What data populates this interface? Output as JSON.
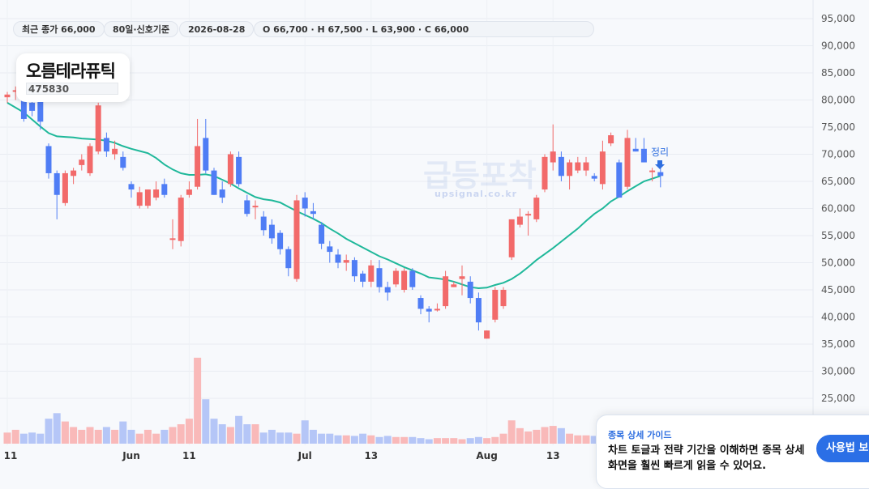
{
  "header": {
    "recent_close_label": "최근 종가 66,000",
    "lookback_label": "80일·신호기준",
    "date_label": "2026-08-28",
    "ohlc_label": "O 66,700 · H 67,500 · L 63,900 · C 66,000"
  },
  "stock": {
    "name": "오름테라퓨틱",
    "code": "475830"
  },
  "watermark": {
    "brand": "급등포착",
    "url": "upsignal.co.kr"
  },
  "guide": {
    "title": "종목 상세 가이드",
    "body": "차트 토글과 전략 기간을 이해하면 종목 상세\n화면을 훨씬 빠르게 읽을 수 있어요.",
    "button_label": "사용법 보기"
  },
  "colors": {
    "up": "#f26a6a",
    "down": "#4f7df5",
    "ma": "#1fb89a",
    "vol_up": "#f9b9b9",
    "vol_down": "#b5c6f7",
    "marker": "#2f6fe0"
  },
  "chart_data": {
    "type": "candlestick",
    "ylim": [
      22000,
      96000
    ],
    "y_ticks": [
      "95,000",
      "90,000",
      "85,000",
      "80,000",
      "75,000",
      "70,000",
      "65,000",
      "60,000",
      "55,000",
      "50,000",
      "45,000",
      "40,000",
      "35,000",
      "30,000",
      "25,000"
    ],
    "y_tick_values": [
      95000,
      90000,
      85000,
      80000,
      75000,
      70000,
      65000,
      60000,
      55000,
      50000,
      45000,
      40000,
      35000,
      30000,
      25000
    ],
    "x_ticks": [
      {
        "label": "11",
        "index": 0
      },
      {
        "label": "Jun",
        "index": 15
      },
      {
        "label": "11",
        "index": 22
      },
      {
        "label": "Jul",
        "index": 36
      },
      {
        "label": "13",
        "index": 44
      },
      {
        "label": "Aug",
        "index": 58
      },
      {
        "label": "13",
        "index": 66
      }
    ],
    "candles": [
      {
        "o": 80500,
        "h": 81500,
        "l": 79500,
        "c": 81000
      },
      {
        "o": 81500,
        "h": 82500,
        "l": 80000,
        "c": 81800
      },
      {
        "o": 80500,
        "h": 81000,
        "l": 76000,
        "c": 76500
      },
      {
        "o": 79500,
        "h": 80500,
        "l": 77000,
        "c": 78000
      },
      {
        "o": 80000,
        "h": 81000,
        "l": 74500,
        "c": 76000
      },
      {
        "o": 71500,
        "h": 72000,
        "l": 65500,
        "c": 66500
      },
      {
        "o": 66500,
        "h": 67000,
        "l": 58000,
        "c": 62500
      },
      {
        "o": 61000,
        "h": 67000,
        "l": 60500,
        "c": 66500
      },
      {
        "o": 66000,
        "h": 67500,
        "l": 64500,
        "c": 67000
      },
      {
        "o": 68000,
        "h": 70000,
        "l": 67000,
        "c": 69000
      },
      {
        "o": 66500,
        "h": 72000,
        "l": 66000,
        "c": 71500
      },
      {
        "o": 70500,
        "h": 79500,
        "l": 70000,
        "c": 79000
      },
      {
        "o": 73000,
        "h": 74000,
        "l": 69500,
        "c": 70500
      },
      {
        "o": 70000,
        "h": 72500,
        "l": 69000,
        "c": 71000
      },
      {
        "o": 69500,
        "h": 70500,
        "l": 67000,
        "c": 67500
      },
      {
        "o": 64500,
        "h": 65000,
        "l": 62000,
        "c": 63500
      },
      {
        "o": 60500,
        "h": 64000,
        "l": 60000,
        "c": 63000
      },
      {
        "o": 60500,
        "h": 63500,
        "l": 60000,
        "c": 63500
      },
      {
        "o": 62000,
        "h": 65000,
        "l": 61500,
        "c": 63500
      },
      {
        "o": 64500,
        "h": 65500,
        "l": 62000,
        "c": 62500
      },
      {
        "o": 54500,
        "h": 58000,
        "l": 52500,
        "c": 54500
      },
      {
        "o": 54000,
        "h": 62500,
        "l": 53000,
        "c": 62000
      },
      {
        "o": 62500,
        "h": 65000,
        "l": 62000,
        "c": 63500
      },
      {
        "o": 64000,
        "h": 76500,
        "l": 63500,
        "c": 71500
      },
      {
        "o": 73000,
        "h": 76500,
        "l": 66500,
        "c": 67000
      },
      {
        "o": 67000,
        "h": 67500,
        "l": 62500,
        "c": 62500
      },
      {
        "o": 63500,
        "h": 65000,
        "l": 61000,
        "c": 62000
      },
      {
        "o": 64500,
        "h": 70500,
        "l": 64000,
        "c": 70000
      },
      {
        "o": 69500,
        "h": 70500,
        "l": 64000,
        "c": 64500
      },
      {
        "o": 61500,
        "h": 62500,
        "l": 58500,
        "c": 59000
      },
      {
        "o": 60500,
        "h": 61500,
        "l": 58000,
        "c": 60500
      },
      {
        "o": 58500,
        "h": 59500,
        "l": 55000,
        "c": 56000
      },
      {
        "o": 57000,
        "h": 58000,
        "l": 53500,
        "c": 54500
      },
      {
        "o": 55500,
        "h": 56000,
        "l": 51500,
        "c": 52500
      },
      {
        "o": 52500,
        "h": 53000,
        "l": 47500,
        "c": 49000
      },
      {
        "o": 47000,
        "h": 62500,
        "l": 46500,
        "c": 61500
      },
      {
        "o": 62000,
        "h": 63000,
        "l": 58500,
        "c": 60000
      },
      {
        "o": 59500,
        "h": 61000,
        "l": 58000,
        "c": 59000
      },
      {
        "o": 57000,
        "h": 57500,
        "l": 52500,
        "c": 53500
      },
      {
        "o": 53000,
        "h": 54000,
        "l": 50000,
        "c": 52000
      },
      {
        "o": 51500,
        "h": 52500,
        "l": 49000,
        "c": 50000
      },
      {
        "o": 50000,
        "h": 51500,
        "l": 48500,
        "c": 50500
      },
      {
        "o": 50500,
        "h": 51000,
        "l": 46500,
        "c": 47500
      },
      {
        "o": 48000,
        "h": 48500,
        "l": 45500,
        "c": 46500
      },
      {
        "o": 46500,
        "h": 50500,
        "l": 45500,
        "c": 49500
      },
      {
        "o": 49000,
        "h": 50500,
        "l": 44500,
        "c": 45500
      },
      {
        "o": 45500,
        "h": 46500,
        "l": 43000,
        "c": 44500
      },
      {
        "o": 46000,
        "h": 49000,
        "l": 45500,
        "c": 48500
      },
      {
        "o": 45000,
        "h": 49000,
        "l": 44500,
        "c": 48500
      },
      {
        "o": 48500,
        "h": 49000,
        "l": 45000,
        "c": 45500
      },
      {
        "o": 43500,
        "h": 44000,
        "l": 40500,
        "c": 41500
      },
      {
        "o": 41500,
        "h": 42000,
        "l": 39000,
        "c": 41000
      },
      {
        "o": 41500,
        "h": 42500,
        "l": 41000,
        "c": 41500
      },
      {
        "o": 42000,
        "h": 48500,
        "l": 41500,
        "c": 47500
      },
      {
        "o": 45500,
        "h": 46500,
        "l": 45500,
        "c": 46000
      },
      {
        "o": 47000,
        "h": 49500,
        "l": 44000,
        "c": 47500
      },
      {
        "o": 46500,
        "h": 47500,
        "l": 42500,
        "c": 43500
      },
      {
        "o": 43500,
        "h": 44500,
        "l": 37500,
        "c": 39000
      },
      {
        "o": 36000,
        "h": 37500,
        "l": 36000,
        "c": 37500
      },
      {
        "o": 39500,
        "h": 45500,
        "l": 39000,
        "c": 45000
      },
      {
        "o": 42000,
        "h": 45500,
        "l": 41500,
        "c": 45000
      },
      {
        "o": 51000,
        "h": 58000,
        "l": 50500,
        "c": 58000
      },
      {
        "o": 57000,
        "h": 60000,
        "l": 56500,
        "c": 58500
      },
      {
        "o": 59000,
        "h": 59500,
        "l": 55000,
        "c": 59000
      },
      {
        "o": 58000,
        "h": 62500,
        "l": 57500,
        "c": 62000
      },
      {
        "o": 63500,
        "h": 70000,
        "l": 63000,
        "c": 69500
      },
      {
        "o": 68500,
        "h": 75500,
        "l": 67000,
        "c": 70500
      },
      {
        "o": 69500,
        "h": 70500,
        "l": 65000,
        "c": 66000
      },
      {
        "o": 66000,
        "h": 69000,
        "l": 63500,
        "c": 68500
      },
      {
        "o": 67000,
        "h": 69500,
        "l": 66500,
        "c": 68500
      },
      {
        "o": 67000,
        "h": 69500,
        "l": 66000,
        "c": 68500
      },
      {
        "o": 66000,
        "h": 66500,
        "l": 65000,
        "c": 65500
      },
      {
        "o": 64500,
        "h": 72500,
        "l": 63500,
        "c": 70500
      },
      {
        "o": 72000,
        "h": 74000,
        "l": 71500,
        "c": 73500
      },
      {
        "o": 68500,
        "h": 69000,
        "l": 62000,
        "c": 62000
      },
      {
        "o": 64000,
        "h": 74500,
        "l": 63500,
        "c": 73000
      },
      {
        "o": 71000,
        "h": 73000,
        "l": 70500,
        "c": 70500
      },
      {
        "o": 71000,
        "h": 73000,
        "l": 68500,
        "c": 68500
      },
      {
        "o": 67000,
        "h": 67500,
        "l": 65000,
        "c": 67000
      },
      {
        "o": 66700,
        "h": 67500,
        "l": 63900,
        "c": 66000
      }
    ],
    "ma": [
      79500,
      78600,
      77700,
      76400,
      75100,
      73900,
      73300,
      73200,
      73100,
      72900,
      72800,
      72700,
      72500,
      72100,
      71500,
      71000,
      70600,
      70200,
      69300,
      68100,
      67200,
      66500,
      66200,
      66200,
      66300,
      66000,
      65300,
      64600,
      63700,
      62900,
      62100,
      61700,
      61500,
      61100,
      60300,
      59500,
      58800,
      58100,
      57300,
      56300,
      55400,
      54400,
      53600,
      52800,
      52000,
      51200,
      50600,
      49900,
      49200,
      48600,
      48000,
      47300,
      47100,
      46900,
      46500,
      46000,
      45500,
      45300,
      45400,
      45900,
      46300,
      47000,
      48000,
      49200,
      50500,
      51600,
      52700,
      53900,
      55100,
      56300,
      57700,
      59000,
      60000,
      61300,
      62200,
      63200,
      64100,
      65000,
      65500,
      66000
    ],
    "volume": [
      20,
      25,
      18,
      20,
      18,
      45,
      55,
      40,
      30,
      25,
      30,
      25,
      30,
      25,
      40,
      25,
      18,
      25,
      18,
      25,
      30,
      35,
      45,
      155,
      80,
      45,
      35,
      30,
      50,
      35,
      35,
      20,
      25,
      20,
      20,
      18,
      42,
      25,
      18,
      18,
      15,
      15,
      14,
      18,
      15,
      12,
      14,
      12,
      12,
      12,
      10,
      8,
      10,
      10,
      10,
      8,
      10,
      12,
      10,
      12,
      18,
      42,
      28,
      22,
      25,
      30,
      32,
      28,
      18,
      15,
      15,
      14,
      20,
      15,
      12,
      10,
      12,
      10,
      12,
      12
    ]
  },
  "marker": {
    "label": "정리"
  }
}
